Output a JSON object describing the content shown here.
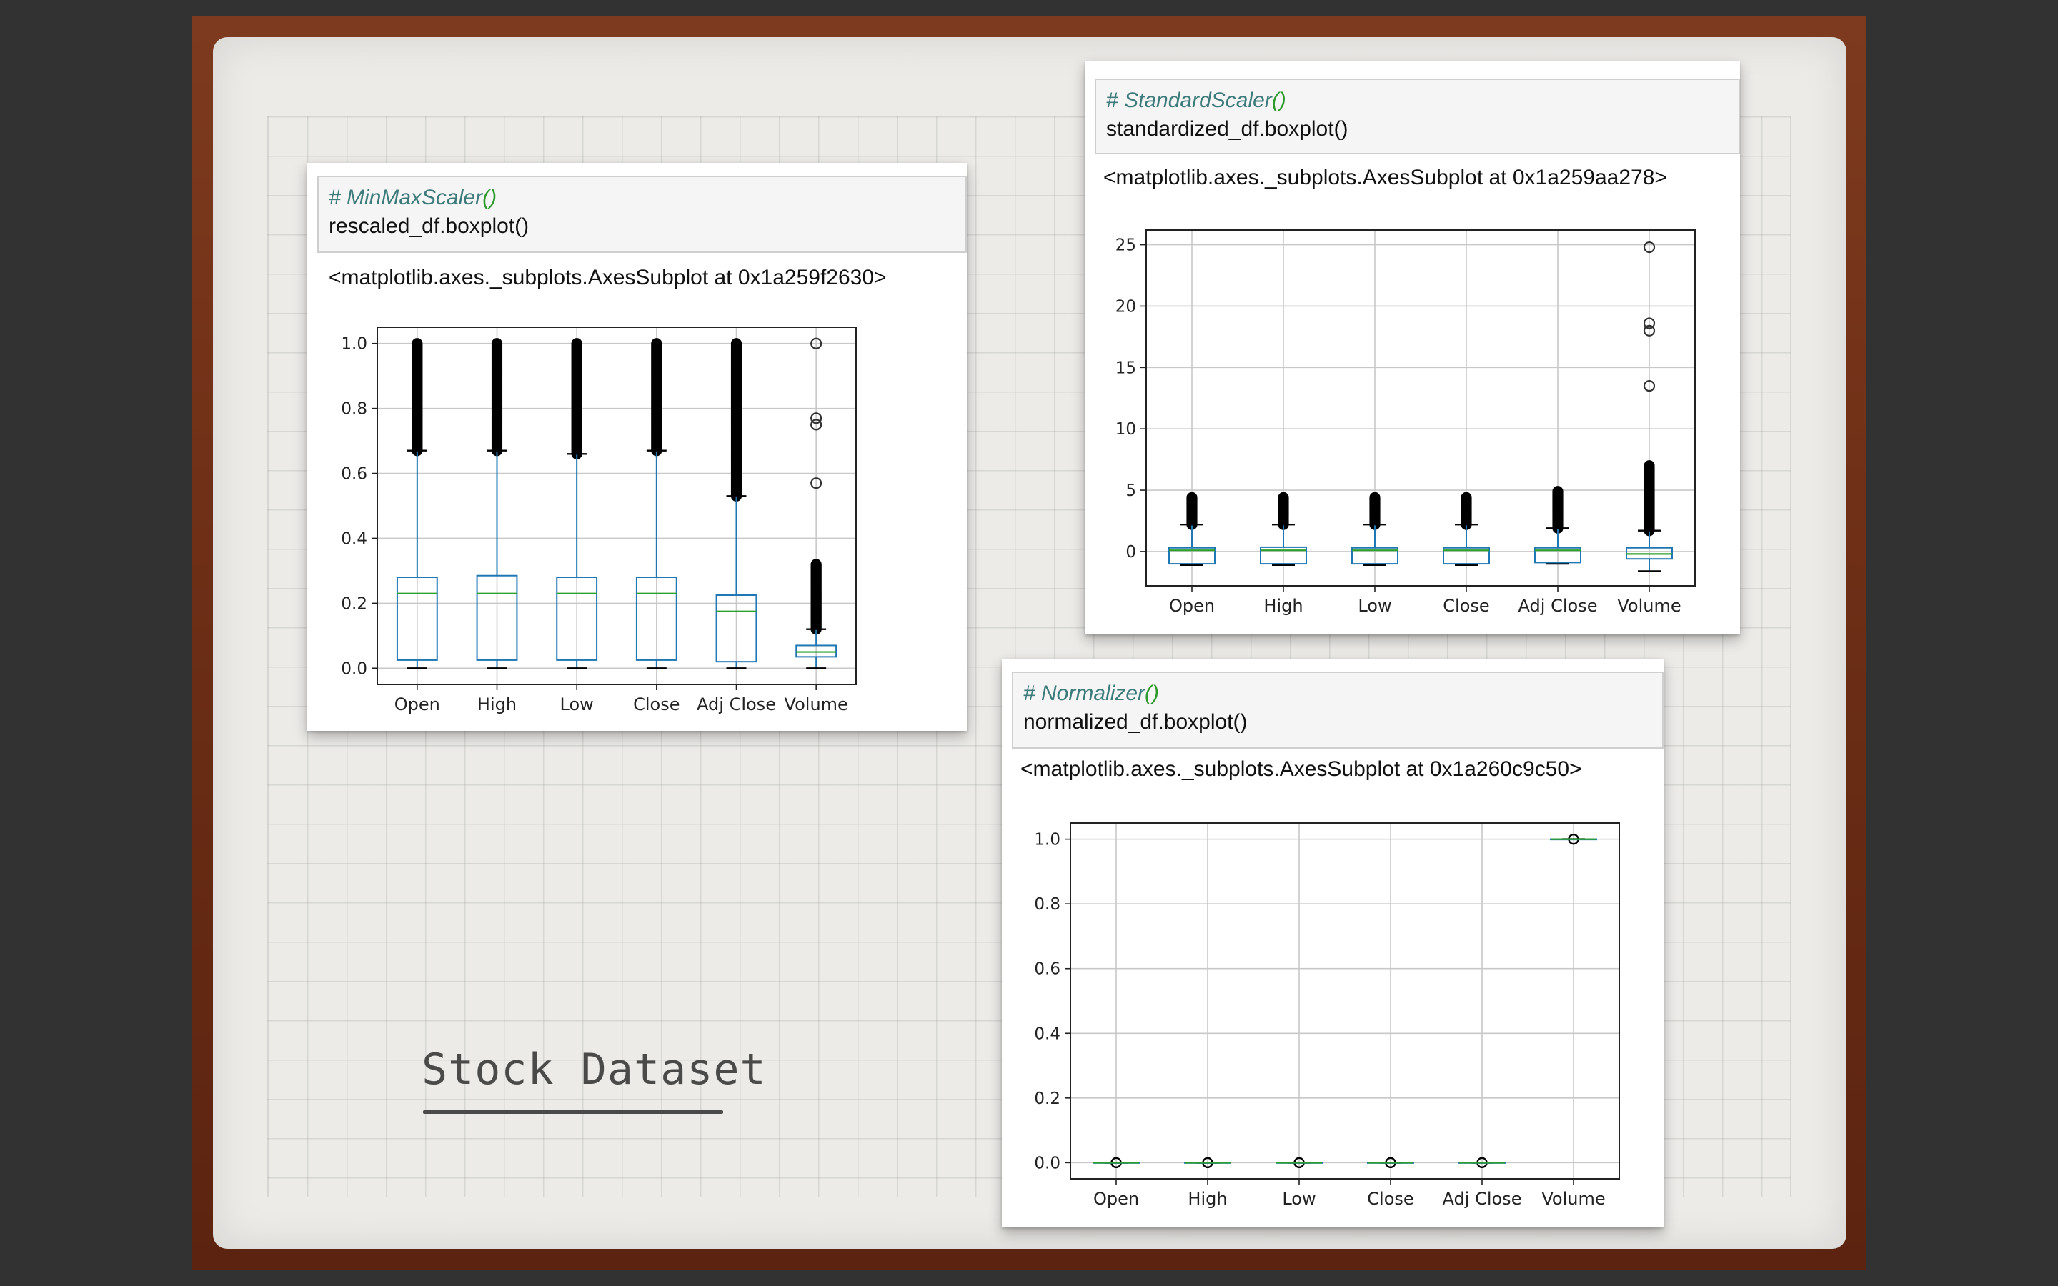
{
  "slide": {
    "title": "Stock Dataset"
  },
  "cells": {
    "minmax": {
      "comment": "# MinMaxScaler",
      "comment_paren": "()",
      "code": "rescaled_df.boxplot()",
      "output": "<matplotlib.axes._subplots.AxesSubplot at 0x1a259f2630>"
    },
    "standard": {
      "comment": "# StandardScaler",
      "comment_paren": "()",
      "code": "standardized_df.boxplot()",
      "output": "<matplotlib.axes._subplots.AxesSubplot at 0x1a259aa278>"
    },
    "normalizer": {
      "comment": "# Normalizer",
      "comment_paren": "()",
      "code": "normalized_df.boxplot()",
      "output": "<matplotlib.axes._subplots.AxesSubplot at 0x1a260c9c50>"
    }
  },
  "colors": {
    "box": "#1f77b4",
    "median": "#2ca02c",
    "grid": "#c8c8c8",
    "flier": "#000000"
  },
  "chart_data": [
    {
      "type": "boxplot",
      "id": "minmax",
      "categories": [
        "Open",
        "High",
        "Low",
        "Close",
        "Adj Close",
        "Volume"
      ],
      "ylim": [
        -0.05,
        1.05
      ],
      "yticks": [
        0.0,
        0.2,
        0.4,
        0.6,
        0.8,
        1.0
      ],
      "ytick_labels": [
        "0.0",
        "0.2",
        "0.4",
        "0.6",
        "0.8",
        "1.0"
      ],
      "grid": true,
      "boxes": [
        {
          "whislo": 0.0,
          "q1": 0.025,
          "med": 0.23,
          "q3": 0.28,
          "whishi": 0.67,
          "fliers_range": [
            0.67,
            1.0
          ]
        },
        {
          "whislo": 0.0,
          "q1": 0.025,
          "med": 0.23,
          "q3": 0.285,
          "whishi": 0.67,
          "fliers_range": [
            0.67,
            1.0
          ]
        },
        {
          "whislo": 0.0,
          "q1": 0.025,
          "med": 0.23,
          "q3": 0.28,
          "whishi": 0.66,
          "fliers_range": [
            0.66,
            1.0
          ]
        },
        {
          "whislo": 0.0,
          "q1": 0.025,
          "med": 0.23,
          "q3": 0.28,
          "whishi": 0.67,
          "fliers_range": [
            0.67,
            1.0
          ]
        },
        {
          "whislo": 0.0,
          "q1": 0.02,
          "med": 0.175,
          "q3": 0.225,
          "whishi": 0.53,
          "fliers_range": [
            0.53,
            1.0
          ]
        },
        {
          "whislo": 0.0,
          "q1": 0.035,
          "med": 0.05,
          "q3": 0.07,
          "whishi": 0.12,
          "fliers_range": [
            0.12,
            0.32
          ],
          "fliers_extra": [
            0.57,
            0.75,
            0.77,
            1.0
          ]
        }
      ]
    },
    {
      "type": "boxplot",
      "id": "standard",
      "categories": [
        "Open",
        "High",
        "Low",
        "Close",
        "Adj Close",
        "Volume"
      ],
      "ylim": [
        -2.8,
        26.2
      ],
      "yticks": [
        0,
        5,
        10,
        15,
        20,
        25
      ],
      "ytick_labels": [
        "0",
        "5",
        "10",
        "15",
        "20",
        "25"
      ],
      "grid": true,
      "boxes": [
        {
          "whislo": -1.1,
          "q1": -1.0,
          "med": 0.1,
          "q3": 0.3,
          "whislo_cap": -1.1,
          "whishi": 2.2,
          "fliers_range": [
            2.2,
            4.4
          ]
        },
        {
          "whislo": -1.1,
          "q1": -1.0,
          "med": 0.1,
          "q3": 0.35,
          "whishi": 2.2,
          "fliers_range": [
            2.2,
            4.4
          ]
        },
        {
          "whislo": -1.1,
          "q1": -1.0,
          "med": 0.1,
          "q3": 0.3,
          "whishi": 2.2,
          "fliers_range": [
            2.2,
            4.4
          ]
        },
        {
          "whislo": -1.1,
          "q1": -1.0,
          "med": 0.1,
          "q3": 0.3,
          "whishi": 2.2,
          "fliers_range": [
            2.2,
            4.4
          ]
        },
        {
          "whislo": -1.0,
          "q1": -0.9,
          "med": 0.1,
          "q3": 0.3,
          "whishi": 1.9,
          "fliers_range": [
            1.9,
            4.9
          ]
        },
        {
          "whislo": -1.6,
          "q1": -0.6,
          "med": -0.2,
          "q3": 0.3,
          "whishi": 1.7,
          "fliers_range": [
            1.7,
            7.0
          ],
          "fliers_extra": [
            13.5,
            18.0,
            18.6,
            24.8
          ]
        }
      ]
    },
    {
      "type": "boxplot",
      "id": "normalizer",
      "categories": [
        "Open",
        "High",
        "Low",
        "Close",
        "Adj Close",
        "Volume"
      ],
      "ylim": [
        -0.05,
        1.05
      ],
      "yticks": [
        0.0,
        0.2,
        0.4,
        0.6,
        0.8,
        1.0
      ],
      "ytick_labels": [
        "0.0",
        "0.2",
        "0.4",
        "0.6",
        "0.8",
        "1.0"
      ],
      "grid": true,
      "boxes": [
        {
          "whislo": 0.0,
          "q1": 0.0,
          "med": 0.0,
          "q3": 0.0,
          "whishi": 0.0,
          "fliers_range": [
            0.0,
            0.0
          ]
        },
        {
          "whislo": 0.0,
          "q1": 0.0,
          "med": 0.0,
          "q3": 0.0,
          "whishi": 0.0,
          "fliers_range": [
            0.0,
            0.0
          ]
        },
        {
          "whislo": 0.0,
          "q1": 0.0,
          "med": 0.0,
          "q3": 0.0,
          "whishi": 0.0,
          "fliers_range": [
            0.0,
            0.0
          ]
        },
        {
          "whislo": 0.0,
          "q1": 0.0,
          "med": 0.0,
          "q3": 0.0,
          "whishi": 0.0,
          "fliers_range": [
            0.0,
            0.0
          ]
        },
        {
          "whislo": 0.0,
          "q1": 0.0,
          "med": 0.0,
          "q3": 0.0,
          "whishi": 0.0,
          "fliers_range": [
            0.0,
            0.0
          ]
        },
        {
          "whislo": 1.0,
          "q1": 1.0,
          "med": 1.0,
          "q3": 1.0,
          "whishi": 1.0,
          "fliers_range": [
            1.0,
            1.0
          ]
        }
      ]
    }
  ]
}
